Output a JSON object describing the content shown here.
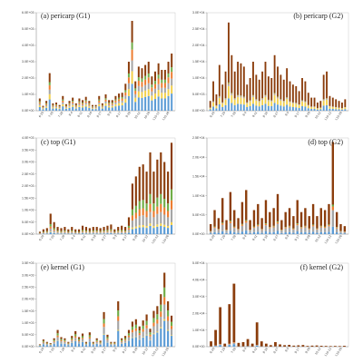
{
  "figure": {
    "layer_colors": [
      "#5b9bd5",
      "#f2d04b",
      "#a5a5a5",
      "#ed7d31",
      "#70ad47",
      "#8b3d0c"
    ]
  },
  "chart_data": [
    {
      "type": "bar",
      "stacked": true,
      "title": "(a) pericarp (G1)",
      "ylim": [
        0,
        6000
      ],
      "yticks": [
        "0.0E+00",
        "1.0E+03",
        "2.0E+03",
        "3.0E+03",
        "4.0E+03",
        "5.0E+03",
        "6.0E+03"
      ],
      "x_tick_labels": [
        "6-20",
        "7-20",
        "7-28",
        "8-4",
        "8-11",
        "8-18",
        "8-27",
        "9-3",
        "9-17",
        "9-29",
        "10-12",
        "10-26",
        "L10-12",
        "L10-26"
      ],
      "totals": [
        750,
        300,
        600,
        2300,
        450,
        500,
        350,
        900,
        400,
        600,
        800,
        450,
        750,
        650,
        850,
        600,
        350,
        350,
        900,
        450,
        1000,
        650,
        650,
        900,
        1050,
        1100,
        1650,
        3000,
        5500,
        1800,
        2700,
        2600,
        2800,
        3000,
        2100,
        2400,
        2900,
        2500,
        2500,
        3000,
        3500
      ]
    },
    {
      "type": "bar",
      "stacked": true,
      "title": "(b) pericarp (G2)",
      "ylim": [
        0,
        30000
      ],
      "yticks": [
        "0.0E+00",
        "5.0E+03",
        "1.0E+04",
        "1.5E+04",
        "2.0E+04",
        "2.5E+04",
        "3.0E+04"
      ],
      "x_tick_labels": [
        "6-20",
        "7-20",
        "7-28",
        "8-4",
        "8-11",
        "8-18",
        "8-27",
        "9-3",
        "9-17",
        "9-29",
        "10-12",
        "L10-12",
        "L10-26"
      ],
      "totals": [
        3000,
        9000,
        5000,
        14000,
        8000,
        12000,
        27000,
        17000,
        12000,
        15000,
        14500,
        13500,
        8000,
        10000,
        15000,
        11000,
        9500,
        12000,
        15000,
        10500,
        10000,
        17000,
        13500,
        11000,
        9500,
        13000,
        9000,
        8000,
        7500,
        6000,
        10000,
        9000,
        5500,
        4000,
        4000,
        2500,
        3000,
        11000,
        12000,
        4500,
        4000,
        3500,
        3000,
        2500,
        3500
      ]
    },
    {
      "type": "bar",
      "stacked": true,
      "title": "(c) top (G1)",
      "ylim": [
        0,
        4000
      ],
      "yticks": [
        "0.0E+00",
        "5.0E+02",
        "1.0E+03",
        "1.5E+03",
        "2.0E+03",
        "2.5E+03",
        "3.0E+03",
        "3.5E+03",
        "4.0E+03"
      ],
      "x_tick_labels": [
        "6-20",
        "7-20",
        "7-28",
        "8-4",
        "8-11",
        "8-18",
        "8-27",
        "9-3",
        "9-17",
        "9-29",
        "10-12",
        "L10-12",
        "L10-26"
      ],
      "totals": [
        100,
        200,
        250,
        850,
        500,
        300,
        250,
        300,
        200,
        300,
        200,
        200,
        350,
        300,
        250,
        300,
        300,
        250,
        300,
        350,
        400,
        200,
        300,
        350,
        300,
        700,
        2100,
        2400,
        2800,
        2900,
        2600,
        3400,
        2600,
        3100,
        3400,
        3000,
        2600,
        3800
      ]
    },
    {
      "type": "bar",
      "stacked": true,
      "title": "(d) top (G2)",
      "ylim": [
        0,
        24000
      ],
      "yticks": [
        "0.0E+00",
        "5.0E+03",
        "1.0E+04",
        "1.5E+04",
        "2.0E+04",
        "2.5E+04"
      ],
      "x_tick_labels": [
        "6-20",
        "7-20",
        "7-28",
        "8-4",
        "8-11",
        "8-18",
        "8-27",
        "9-3",
        "9-17",
        "9-29",
        "10-12",
        "L10-12",
        "L10-26"
      ],
      "totals": [
        2500,
        6000,
        4000,
        9000,
        3500,
        10500,
        6000,
        4000,
        8000,
        11000,
        3500,
        6000,
        7500,
        4000,
        8500,
        5500,
        6500,
        10000,
        3500,
        5500,
        6500,
        4500,
        8500,
        5500,
        6500,
        4500,
        7500,
        4500,
        6500,
        6000,
        7500,
        23000,
        5500,
        2500,
        2000
      ]
    },
    {
      "type": "bar",
      "stacked": true,
      "title": "(e) kernel (G1)",
      "ylim": [
        0,
        3500
      ],
      "yticks": [
        "0.0E+00",
        "5.0E+02",
        "1.0E+03",
        "1.5E+03",
        "2.0E+03",
        "2.5E+03",
        "3.0E+03",
        "3.5E+03"
      ],
      "x_tick_labels": [
        "6-20",
        "7-20",
        "7-28",
        "8-4",
        "8-11",
        "8-18",
        "8-27",
        "9-3",
        "9-17",
        "9-29",
        "10-12",
        "L10-12",
        "L10-26"
      ],
      "totals": [
        100,
        300,
        200,
        150,
        350,
        700,
        400,
        350,
        200,
        450,
        650,
        400,
        550,
        200,
        600,
        200,
        350,
        250,
        1450,
        500,
        200,
        200,
        1900,
        350,
        450,
        700,
        1050,
        1150,
        850,
        1100,
        1350,
        750,
        1500,
        1700,
        2200,
        3100,
        1900,
        1300
      ]
    },
    {
      "type": "bar",
      "stacked": true,
      "title": "(f) kernel (G2)",
      "ylim": [
        0,
        55000
      ],
      "yticks": [
        "0.0E+00",
        "1.0E+04",
        "2.0E+04",
        "3.0E+04",
        "4.0E+04",
        "5.0E+04"
      ],
      "x_tick_labels": [
        "6-20",
        "7-20",
        "7-28",
        "8-4",
        "8-11",
        "8-18",
        "8-27",
        "9-3",
        "9-17",
        "9-29",
        "10-12",
        "L10-12",
        "L10-26"
      ],
      "totals": [
        3500,
        11000,
        26000,
        2000,
        28000,
        41500,
        2500,
        3000,
        5000,
        2000,
        16000,
        3500,
        2000,
        1000,
        3000,
        1500,
        1000,
        1200,
        700,
        900,
        1100,
        500,
        700,
        800,
        600,
        500,
        400,
        500,
        400,
        600
      ]
    }
  ]
}
